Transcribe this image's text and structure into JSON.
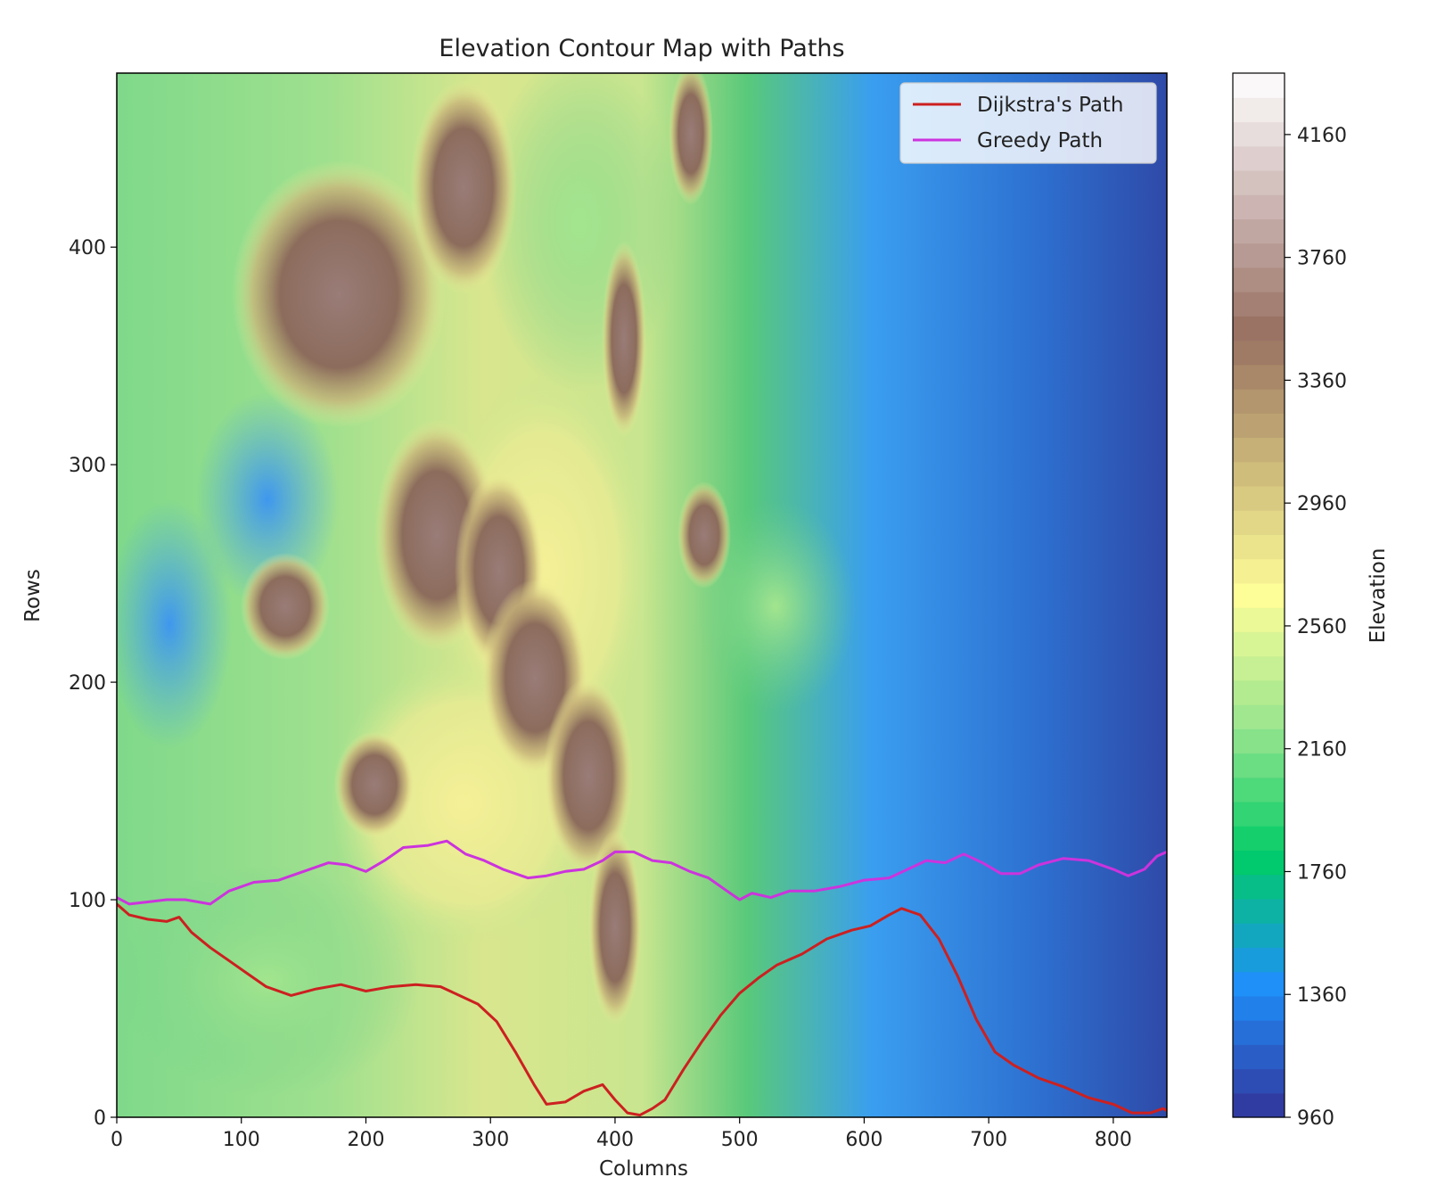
{
  "chart_data": {
    "type": "heatmap",
    "title": "Elevation Contour Map with Paths",
    "xlabel": "Columns",
    "ylabel": "Rows",
    "xlim": [
      0,
      843
    ],
    "ylim": [
      0,
      480
    ],
    "xticks": [
      "0",
      "100",
      "200",
      "300",
      "400",
      "500",
      "600",
      "700",
      "800"
    ],
    "yticks": [
      "0",
      "100",
      "200",
      "300",
      "400"
    ],
    "colorbar": {
      "label": "Elevation",
      "range": [
        960,
        4360
      ],
      "ticks": [
        "960",
        "1360",
        "1760",
        "2160",
        "2560",
        "2960",
        "3360",
        "3760",
        "4160"
      ],
      "colormap": "terrain",
      "colors": [
        "#333399",
        "#1f8ffa",
        "#00cc66",
        "#99e58f",
        "#fefe98",
        "#ccb87a",
        "#987061",
        "#ccb6b3",
        "#ffffff"
      ]
    },
    "legend": {
      "position": "top-right"
    },
    "series": [
      {
        "name": "Dijkstra's Path",
        "color": "#cc2020",
        "points": [
          [
            0,
            98
          ],
          [
            10,
            93
          ],
          [
            25,
            91
          ],
          [
            40,
            90
          ],
          [
            50,
            92
          ],
          [
            60,
            85
          ],
          [
            75,
            78
          ],
          [
            90,
            72
          ],
          [
            105,
            66
          ],
          [
            120,
            60
          ],
          [
            140,
            56
          ],
          [
            160,
            59
          ],
          [
            180,
            61
          ],
          [
            200,
            58
          ],
          [
            220,
            60
          ],
          [
            240,
            61
          ],
          [
            260,
            60
          ],
          [
            275,
            56
          ],
          [
            290,
            52
          ],
          [
            305,
            44
          ],
          [
            320,
            30
          ],
          [
            335,
            15
          ],
          [
            345,
            6
          ],
          [
            360,
            7
          ],
          [
            375,
            12
          ],
          [
            390,
            15
          ],
          [
            400,
            8
          ],
          [
            410,
            2
          ],
          [
            420,
            1
          ],
          [
            430,
            4
          ],
          [
            440,
            8
          ],
          [
            455,
            22
          ],
          [
            470,
            35
          ],
          [
            485,
            47
          ],
          [
            500,
            57
          ],
          [
            515,
            64
          ],
          [
            530,
            70
          ],
          [
            550,
            75
          ],
          [
            570,
            82
          ],
          [
            590,
            86
          ],
          [
            605,
            88
          ],
          [
            620,
            93
          ],
          [
            630,
            96
          ],
          [
            645,
            93
          ],
          [
            660,
            82
          ],
          [
            675,
            65
          ],
          [
            690,
            45
          ],
          [
            705,
            30
          ],
          [
            720,
            24
          ],
          [
            740,
            18
          ],
          [
            760,
            14
          ],
          [
            780,
            9
          ],
          [
            800,
            6
          ],
          [
            815,
            2
          ],
          [
            830,
            2
          ],
          [
            840,
            4
          ],
          [
            843,
            3
          ]
        ]
      },
      {
        "name": "Greedy Path",
        "color": "#cc33dd",
        "points": [
          [
            0,
            101
          ],
          [
            10,
            98
          ],
          [
            25,
            99
          ],
          [
            40,
            100
          ],
          [
            55,
            100
          ],
          [
            75,
            98
          ],
          [
            90,
            104
          ],
          [
            110,
            108
          ],
          [
            130,
            109
          ],
          [
            150,
            113
          ],
          [
            170,
            117
          ],
          [
            185,
            116
          ],
          [
            200,
            113
          ],
          [
            215,
            118
          ],
          [
            230,
            124
          ],
          [
            250,
            125
          ],
          [
            265,
            127
          ],
          [
            280,
            121
          ],
          [
            295,
            118
          ],
          [
            310,
            114
          ],
          [
            330,
            110
          ],
          [
            345,
            111
          ],
          [
            360,
            113
          ],
          [
            375,
            114
          ],
          [
            390,
            118
          ],
          [
            400,
            122
          ],
          [
            415,
            122
          ],
          [
            430,
            118
          ],
          [
            445,
            117
          ],
          [
            460,
            113
          ],
          [
            475,
            110
          ],
          [
            490,
            104
          ],
          [
            500,
            100
          ],
          [
            510,
            103
          ],
          [
            525,
            101
          ],
          [
            540,
            104
          ],
          [
            560,
            104
          ],
          [
            580,
            106
          ],
          [
            600,
            109
          ],
          [
            620,
            110
          ],
          [
            635,
            114
          ],
          [
            650,
            118
          ],
          [
            665,
            117
          ],
          [
            680,
            121
          ],
          [
            695,
            117
          ],
          [
            710,
            112
          ],
          [
            725,
            112
          ],
          [
            740,
            116
          ],
          [
            760,
            119
          ],
          [
            780,
            118
          ],
          [
            800,
            114
          ],
          [
            812,
            111
          ],
          [
            825,
            114
          ],
          [
            835,
            120
          ],
          [
            843,
            122
          ]
        ]
      }
    ]
  }
}
